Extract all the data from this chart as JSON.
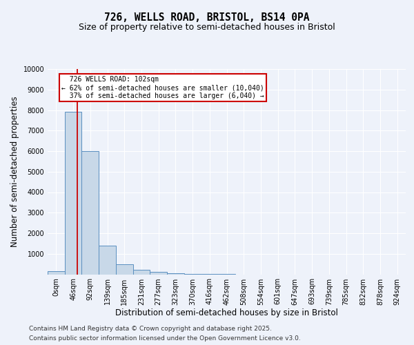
{
  "title_line1": "726, WELLS ROAD, BRISTOL, BS14 0PA",
  "title_line2": "Size of property relative to semi-detached houses in Bristol",
  "xlabel": "Distribution of semi-detached houses by size in Bristol",
  "ylabel": "Number of semi-detached properties",
  "bar_labels": [
    "0sqm",
    "46sqm",
    "92sqm",
    "139sqm",
    "185sqm",
    "231sqm",
    "277sqm",
    "323sqm",
    "370sqm",
    "416sqm",
    "462sqm",
    "508sqm",
    "554sqm",
    "601sqm",
    "647sqm",
    "693sqm",
    "739sqm",
    "785sqm",
    "832sqm",
    "878sqm",
    "924sqm"
  ],
  "bar_values": [
    150,
    7900,
    6000,
    1400,
    500,
    230,
    120,
    50,
    10,
    2,
    1,
    0,
    0,
    0,
    0,
    0,
    0,
    0,
    0,
    0,
    0
  ],
  "bar_color": "#c8d8e8",
  "bar_edge_color": "#5a8fc0",
  "bar_edge_width": 0.7,
  "vline_x": 1.25,
  "vline_color": "#cc0000",
  "annotation_text": "  726 WELLS ROAD: 102sqm\n← 62% of semi-detached houses are smaller (10,040)\n  37% of semi-detached houses are larger (6,040) →",
  "annotation_box_color": "#ffffff",
  "annotation_box_edge_color": "#cc0000",
  "ylim": [
    0,
    10000
  ],
  "yticks": [
    0,
    1000,
    2000,
    3000,
    4000,
    5000,
    6000,
    7000,
    8000,
    9000,
    10000
  ],
  "background_color": "#eef2fa",
  "plot_bg_color": "#eef2fa",
  "footer_line1": "Contains HM Land Registry data © Crown copyright and database right 2025.",
  "footer_line2": "Contains public sector information licensed under the Open Government Licence v3.0.",
  "title_fontsize": 10.5,
  "subtitle_fontsize": 9,
  "tick_fontsize": 7,
  "label_fontsize": 8.5,
  "footer_fontsize": 6.5
}
